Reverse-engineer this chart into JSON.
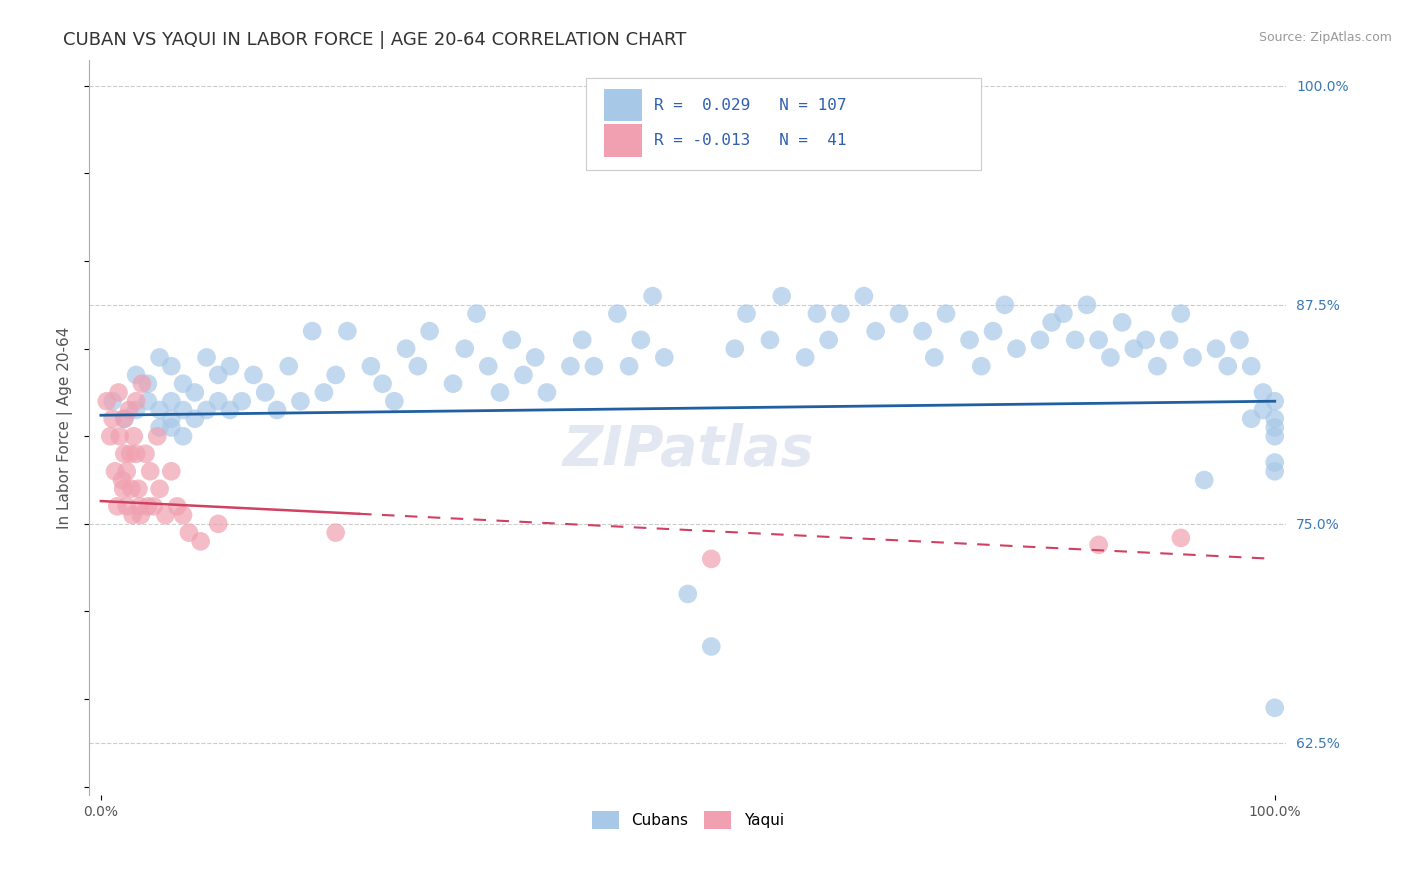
{
  "title": "CUBAN VS YAQUI IN LABOR FORCE | AGE 20-64 CORRELATION CHART",
  "source_text": "Source: ZipAtlas.com",
  "ylabel": "In Labor Force | Age 20-64",
  "x_tick_left": "0.0%",
  "x_tick_right": "100.0%",
  "y_tick_labels_right": [
    "62.5%",
    "75.0%",
    "87.5%",
    "100.0%"
  ],
  "y_ticks_right": [
    0.625,
    0.75,
    0.875,
    1.0
  ],
  "xlim": [
    -0.01,
    1.01
  ],
  "ylim": [
    0.595,
    1.015
  ],
  "legend_labels_bottom": [
    "Cubans",
    "Yaqui"
  ],
  "watermark": "ZIPatlas",
  "background_color": "#ffffff",
  "plot_bg_color": "#ffffff",
  "grid_color": "#cccccc",
  "cuban_color": "#a8c8e8",
  "cuban_line_color": "#2060a0",
  "yaqui_color": "#f0a0b0",
  "yaqui_line_color": "#d04060",
  "cuban_R": 0.029,
  "yaqui_R": -0.013,
  "cuban_N": 107,
  "yaqui_N": 41,
  "cuban_trend_y0": 0.812,
  "cuban_trend_y1": 0.82,
  "yaqui_trend_y0": 0.763,
  "yaqui_trend_y1": 0.73,
  "title_fontsize": 13,
  "axis_label_fontsize": 11,
  "tick_fontsize": 10,
  "legend_fontsize": 11,
  "source_fontsize": 9,
  "cuban_scatter_x": [
    0.01,
    0.02,
    0.03,
    0.03,
    0.04,
    0.04,
    0.05,
    0.05,
    0.05,
    0.06,
    0.06,
    0.06,
    0.06,
    0.07,
    0.07,
    0.07,
    0.08,
    0.08,
    0.09,
    0.09,
    0.1,
    0.1,
    0.11,
    0.11,
    0.12,
    0.13,
    0.14,
    0.15,
    0.16,
    0.17,
    0.18,
    0.19,
    0.2,
    0.21,
    0.23,
    0.24,
    0.25,
    0.26,
    0.27,
    0.28,
    0.3,
    0.31,
    0.32,
    0.33,
    0.34,
    0.35,
    0.36,
    0.37,
    0.38,
    0.4,
    0.41,
    0.42,
    0.44,
    0.45,
    0.46,
    0.47,
    0.48,
    0.5,
    0.52,
    0.54,
    0.55,
    0.57,
    0.58,
    0.6,
    0.61,
    0.62,
    0.63,
    0.65,
    0.66,
    0.68,
    0.7,
    0.71,
    0.72,
    0.74,
    0.75,
    0.76,
    0.77,
    0.78,
    0.8,
    0.81,
    0.82,
    0.83,
    0.84,
    0.85,
    0.86,
    0.87,
    0.88,
    0.89,
    0.9,
    0.91,
    0.92,
    0.93,
    0.94,
    0.95,
    0.96,
    0.97,
    0.98,
    0.98,
    0.99,
    0.99,
    1.0,
    1.0,
    1.0,
    1.0,
    1.0,
    1.0,
    1.0
  ],
  "cuban_scatter_y": [
    0.82,
    0.81,
    0.835,
    0.815,
    0.83,
    0.82,
    0.845,
    0.815,
    0.805,
    0.84,
    0.82,
    0.81,
    0.805,
    0.83,
    0.815,
    0.8,
    0.825,
    0.81,
    0.845,
    0.815,
    0.835,
    0.82,
    0.84,
    0.815,
    0.82,
    0.835,
    0.825,
    0.815,
    0.84,
    0.82,
    0.86,
    0.825,
    0.835,
    0.86,
    0.84,
    0.83,
    0.82,
    0.85,
    0.84,
    0.86,
    0.83,
    0.85,
    0.87,
    0.84,
    0.825,
    0.855,
    0.835,
    0.845,
    0.825,
    0.84,
    0.855,
    0.84,
    0.87,
    0.84,
    0.855,
    0.88,
    0.845,
    0.71,
    0.68,
    0.85,
    0.87,
    0.855,
    0.88,
    0.845,
    0.87,
    0.855,
    0.87,
    0.88,
    0.86,
    0.87,
    0.86,
    0.845,
    0.87,
    0.855,
    0.84,
    0.86,
    0.875,
    0.85,
    0.855,
    0.865,
    0.87,
    0.855,
    0.875,
    0.855,
    0.845,
    0.865,
    0.85,
    0.855,
    0.84,
    0.855,
    0.87,
    0.845,
    0.775,
    0.85,
    0.84,
    0.855,
    0.84,
    0.81,
    0.825,
    0.815,
    0.82,
    0.81,
    0.8,
    0.805,
    0.785,
    0.78,
    0.645
  ],
  "yaqui_scatter_x": [
    0.005,
    0.008,
    0.01,
    0.012,
    0.014,
    0.015,
    0.016,
    0.018,
    0.019,
    0.02,
    0.02,
    0.022,
    0.022,
    0.024,
    0.025,
    0.026,
    0.027,
    0.028,
    0.03,
    0.03,
    0.032,
    0.033,
    0.034,
    0.035,
    0.038,
    0.04,
    0.042,
    0.045,
    0.048,
    0.05,
    0.055,
    0.06,
    0.065,
    0.07,
    0.075,
    0.085,
    0.1,
    0.2,
    0.52,
    0.85,
    0.92
  ],
  "yaqui_scatter_y": [
    0.82,
    0.8,
    0.81,
    0.78,
    0.76,
    0.825,
    0.8,
    0.775,
    0.77,
    0.81,
    0.79,
    0.78,
    0.76,
    0.815,
    0.79,
    0.77,
    0.755,
    0.8,
    0.82,
    0.79,
    0.77,
    0.76,
    0.755,
    0.83,
    0.79,
    0.76,
    0.78,
    0.76,
    0.8,
    0.77,
    0.755,
    0.78,
    0.76,
    0.755,
    0.745,
    0.74,
    0.75,
    0.745,
    0.73,
    0.738,
    0.742
  ]
}
